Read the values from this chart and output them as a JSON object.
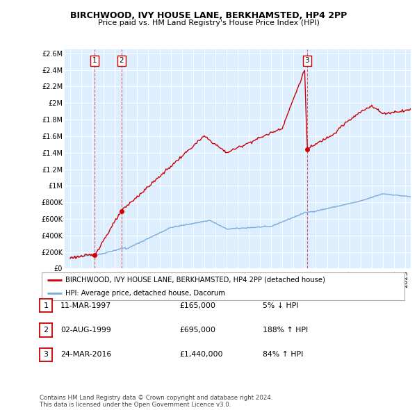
{
  "title": "BIRCHWOOD, IVY HOUSE LANE, BERKHAMSTED, HP4 2PP",
  "subtitle": "Price paid vs. HM Land Registry's House Price Index (HPI)",
  "ylabel_ticks": [
    "£0",
    "£200K",
    "£400K",
    "£600K",
    "£800K",
    "£1M",
    "£1.2M",
    "£1.4M",
    "£1.6M",
    "£1.8M",
    "£2M",
    "£2.2M",
    "£2.4M",
    "£2.6M"
  ],
  "ytick_values": [
    0,
    200000,
    400000,
    600000,
    800000,
    1000000,
    1200000,
    1400000,
    1600000,
    1800000,
    2000000,
    2200000,
    2400000,
    2600000
  ],
  "ylim": [
    0,
    2650000
  ],
  "xlim_start": 1994.5,
  "xlim_end": 2025.5,
  "sale_color": "#cc0000",
  "hpi_color": "#7aaadd",
  "background_color": "#ddeeff",
  "grid_color": "#ffffff",
  "vline_color": "#cc0000",
  "transactions": [
    {
      "num": 1,
      "date_str": "11-MAR-1997",
      "date_x": 1997.19,
      "price": 165000,
      "pct": "5%",
      "dir": "↓"
    },
    {
      "num": 2,
      "date_str": "02-AUG-1999",
      "date_x": 1999.58,
      "price": 695000,
      "pct": "188%",
      "dir": "↑"
    },
    {
      "num": 3,
      "date_str": "24-MAR-2016",
      "date_x": 2016.22,
      "price": 1440000,
      "pct": "84%",
      "dir": "↑"
    }
  ],
  "legend_label_sale": "BIRCHWOOD, IVY HOUSE LANE, BERKHAMSTED, HP4 2PP (detached house)",
  "legend_label_hpi": "HPI: Average price, detached house, Dacorum",
  "footer": "Contains HM Land Registry data © Crown copyright and database right 2024.\nThis data is licensed under the Open Government Licence v3.0."
}
